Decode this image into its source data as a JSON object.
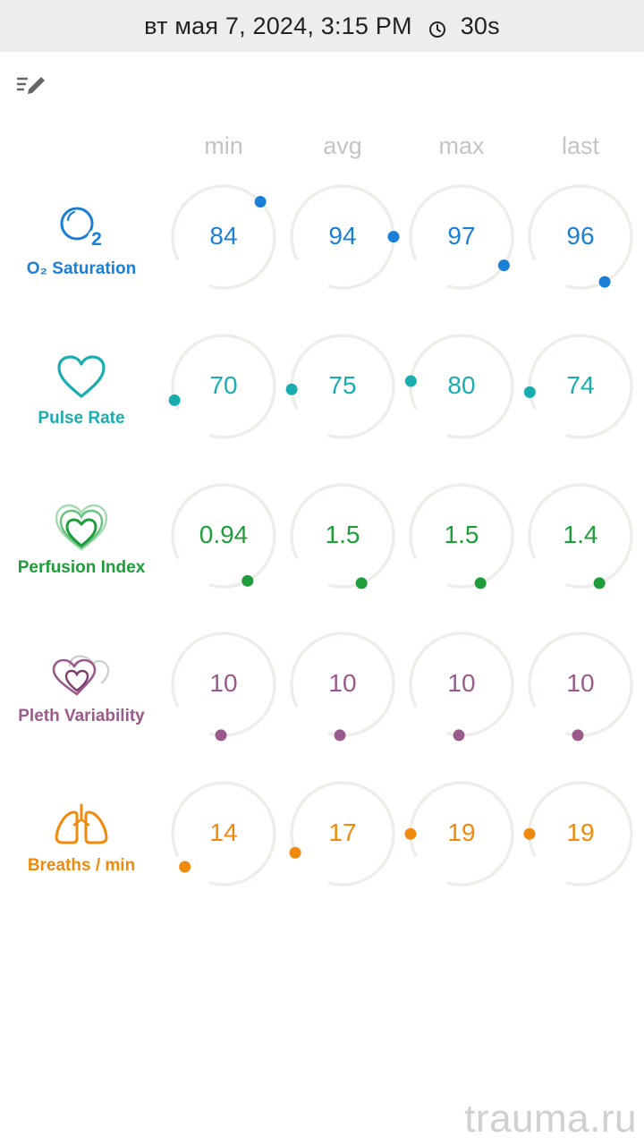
{
  "header": {
    "datetime": "вт мая 7, 2024, 3:15 PM",
    "timer": "30s"
  },
  "columns": [
    "min",
    "avg",
    "max",
    "last"
  ],
  "rows": [
    {
      "label": "O₂ Saturation",
      "icon": "o2-bubble-icon",
      "color": "#1a7fd6",
      "values": [
        "84",
        "94",
        "97",
        "96"
      ],
      "fractions": [
        0.52,
        0.66,
        0.77,
        0.86
      ]
    },
    {
      "label": "Pulse Rate",
      "icon": "heart-outline-icon",
      "color": "#1aadb0",
      "values": [
        "70",
        "75",
        "80",
        "74"
      ],
      "fractions": [
        0.03,
        0.07,
        0.1,
        0.06
      ]
    },
    {
      "label": "Perfusion Index",
      "icon": "perfusion-hearts-icon",
      "color": "#1f9d3a",
      "values": [
        "0.94",
        "1.5",
        "1.5",
        "1.4"
      ],
      "fractions": [
        -0.3,
        -0.28,
        -0.28,
        -0.28
      ]
    },
    {
      "label": "Pleth Variability",
      "icon": "pleth-hearts-icon",
      "color": "#9a5a8c",
      "values": [
        "10",
        "10",
        "10",
        "10"
      ],
      "fractions": [
        -0.2,
        -0.2,
        -0.2,
        -0.2
      ]
    },
    {
      "label": "Breaths / min",
      "icon": "lungs-icon",
      "color": "#f08a0c",
      "values": [
        "14",
        "17",
        "19",
        "19"
      ],
      "fractions": [
        -0.05,
        0.01,
        0.08,
        0.08
      ]
    }
  ],
  "watermark": "trauma.ru"
}
